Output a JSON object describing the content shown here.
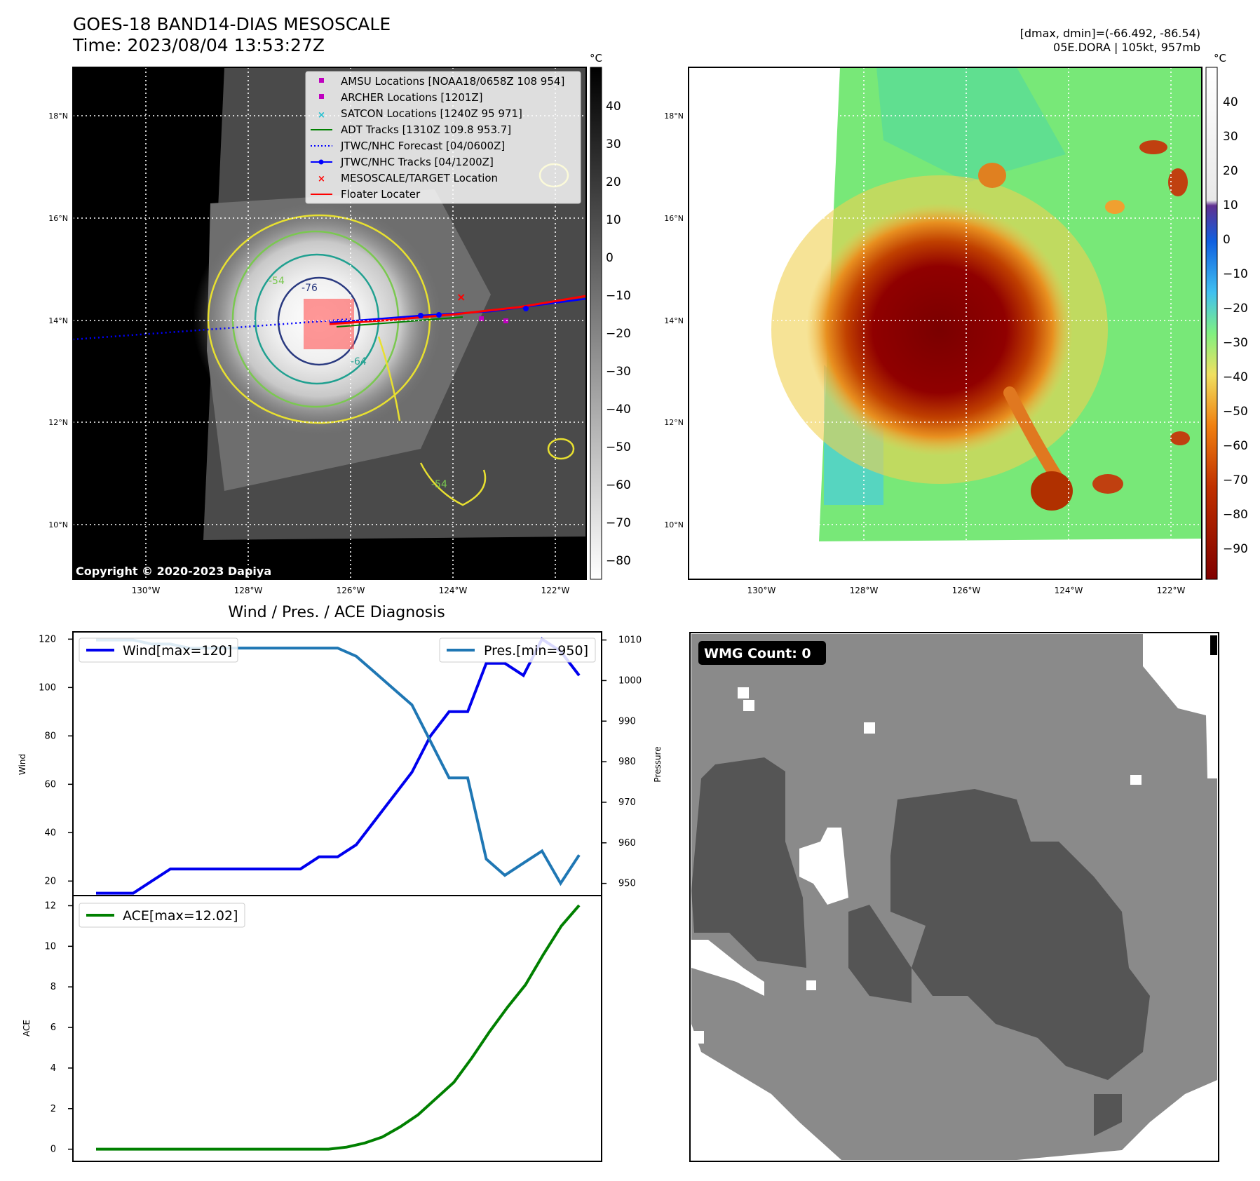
{
  "header": {
    "title": "GOES-18 BAND14-DIAS MESOSCALE",
    "time": "Time: 2023/08/04 13:53:27Z",
    "dminmax": "[dmax, dmin]=(-66.492, -86.54)",
    "storm": "05E.DORA | 105kt, 957mb"
  },
  "map_panels": {
    "lat_ticks": [
      "18°N",
      "16°N",
      "14°N",
      "12°N",
      "10°N"
    ],
    "lon_ticks": [
      "130°W",
      "128°W",
      "126°W",
      "124°W",
      "122°W"
    ],
    "colorbar_unit": "°C",
    "left_colorbar_ticks": [
      "40",
      "30",
      "20",
      "10",
      "0",
      "−10",
      "−20",
      "−30",
      "−40",
      "−50",
      "−60",
      "−70",
      "−80"
    ],
    "right_colorbar_ticks": [
      "40",
      "30",
      "20",
      "10",
      "0",
      "−10",
      "−20",
      "−30",
      "−40",
      "−50",
      "−60",
      "−70",
      "−80",
      "−90"
    ],
    "copyright": "Copyright © 2020-2023 Dapiya",
    "contour_labels": [
      "-76",
      "-54",
      "-64",
      "-54"
    ],
    "legend": [
      {
        "label": "AMSU Locations [NOAA18/0658Z 108 954]",
        "color": "#bf00bf",
        "marker": "square"
      },
      {
        "label": "ARCHER Locations [1201Z]",
        "color": "#bf00bf",
        "marker": "square"
      },
      {
        "label": "SATCON Locations [1240Z 95 971]",
        "color": "#17becf",
        "marker": "x"
      },
      {
        "label": "ADT Tracks [1310Z 109.8 953.7]",
        "color": "#008000",
        "marker": "line"
      },
      {
        "label": "JTWC/NHC Forecast [04/0600Z]",
        "color": "#0000ff",
        "marker": "dotted"
      },
      {
        "label": "JTWC/NHC Tracks [04/1200Z]",
        "color": "#0000ff",
        "marker": "line-dot"
      },
      {
        "label": "MESOSCALE/TARGET Location",
        "color": "#ff0000",
        "marker": "x"
      },
      {
        "label": "Floater Locater",
        "color": "#ff0000",
        "marker": "line"
      }
    ]
  },
  "wmg": {
    "label": "WMG Count: 0"
  },
  "chart_data": [
    {
      "type": "line",
      "title": "Wind / Pres. / ACE Diagnosis",
      "ylabel": "Wind",
      "y2label": "Pressure",
      "ylim": [
        14,
        123
      ],
      "y2lim": [
        947,
        1012
      ],
      "yticks": [
        20,
        40,
        60,
        80,
        100,
        120
      ],
      "y2ticks": [
        950,
        960,
        970,
        980,
        990,
        1000,
        1010
      ],
      "series": [
        {
          "name": "Wind[max=120]",
          "color": "#0000ee",
          "values": [
            15,
            15,
            15,
            20,
            25,
            25,
            25,
            25,
            25,
            25,
            25,
            25,
            30,
            30,
            35,
            45,
            55,
            65,
            80,
            90,
            90,
            110,
            110,
            105,
            120,
            115,
            105
          ]
        },
        {
          "name": "Pres.[min=950]",
          "color": "#1f77b4",
          "axis": "y2",
          "values": [
            1010,
            1010,
            1010,
            1009,
            1009,
            1008,
            1008,
            1008,
            1008,
            1008,
            1008,
            1008,
            1008,
            1008,
            1006,
            1002,
            998,
            994,
            985,
            976,
            976,
            956,
            952,
            955,
            958,
            950,
            957
          ]
        }
      ]
    },
    {
      "type": "line",
      "ylabel": "ACE",
      "ylim": [
        -0.6,
        12.5
      ],
      "yticks": [
        0,
        2,
        4,
        6,
        8,
        10,
        12
      ],
      "series": [
        {
          "name": "ACE[max=12.02]",
          "color": "#008000",
          "values": [
            0,
            0,
            0,
            0,
            0,
            0,
            0,
            0,
            0,
            0,
            0,
            0,
            0,
            0,
            0.1,
            0.3,
            0.6,
            1.1,
            1.7,
            2.5,
            3.3,
            4.5,
            5.8,
            7.0,
            8.1,
            9.6,
            11.0,
            12.02
          ]
        }
      ]
    }
  ]
}
